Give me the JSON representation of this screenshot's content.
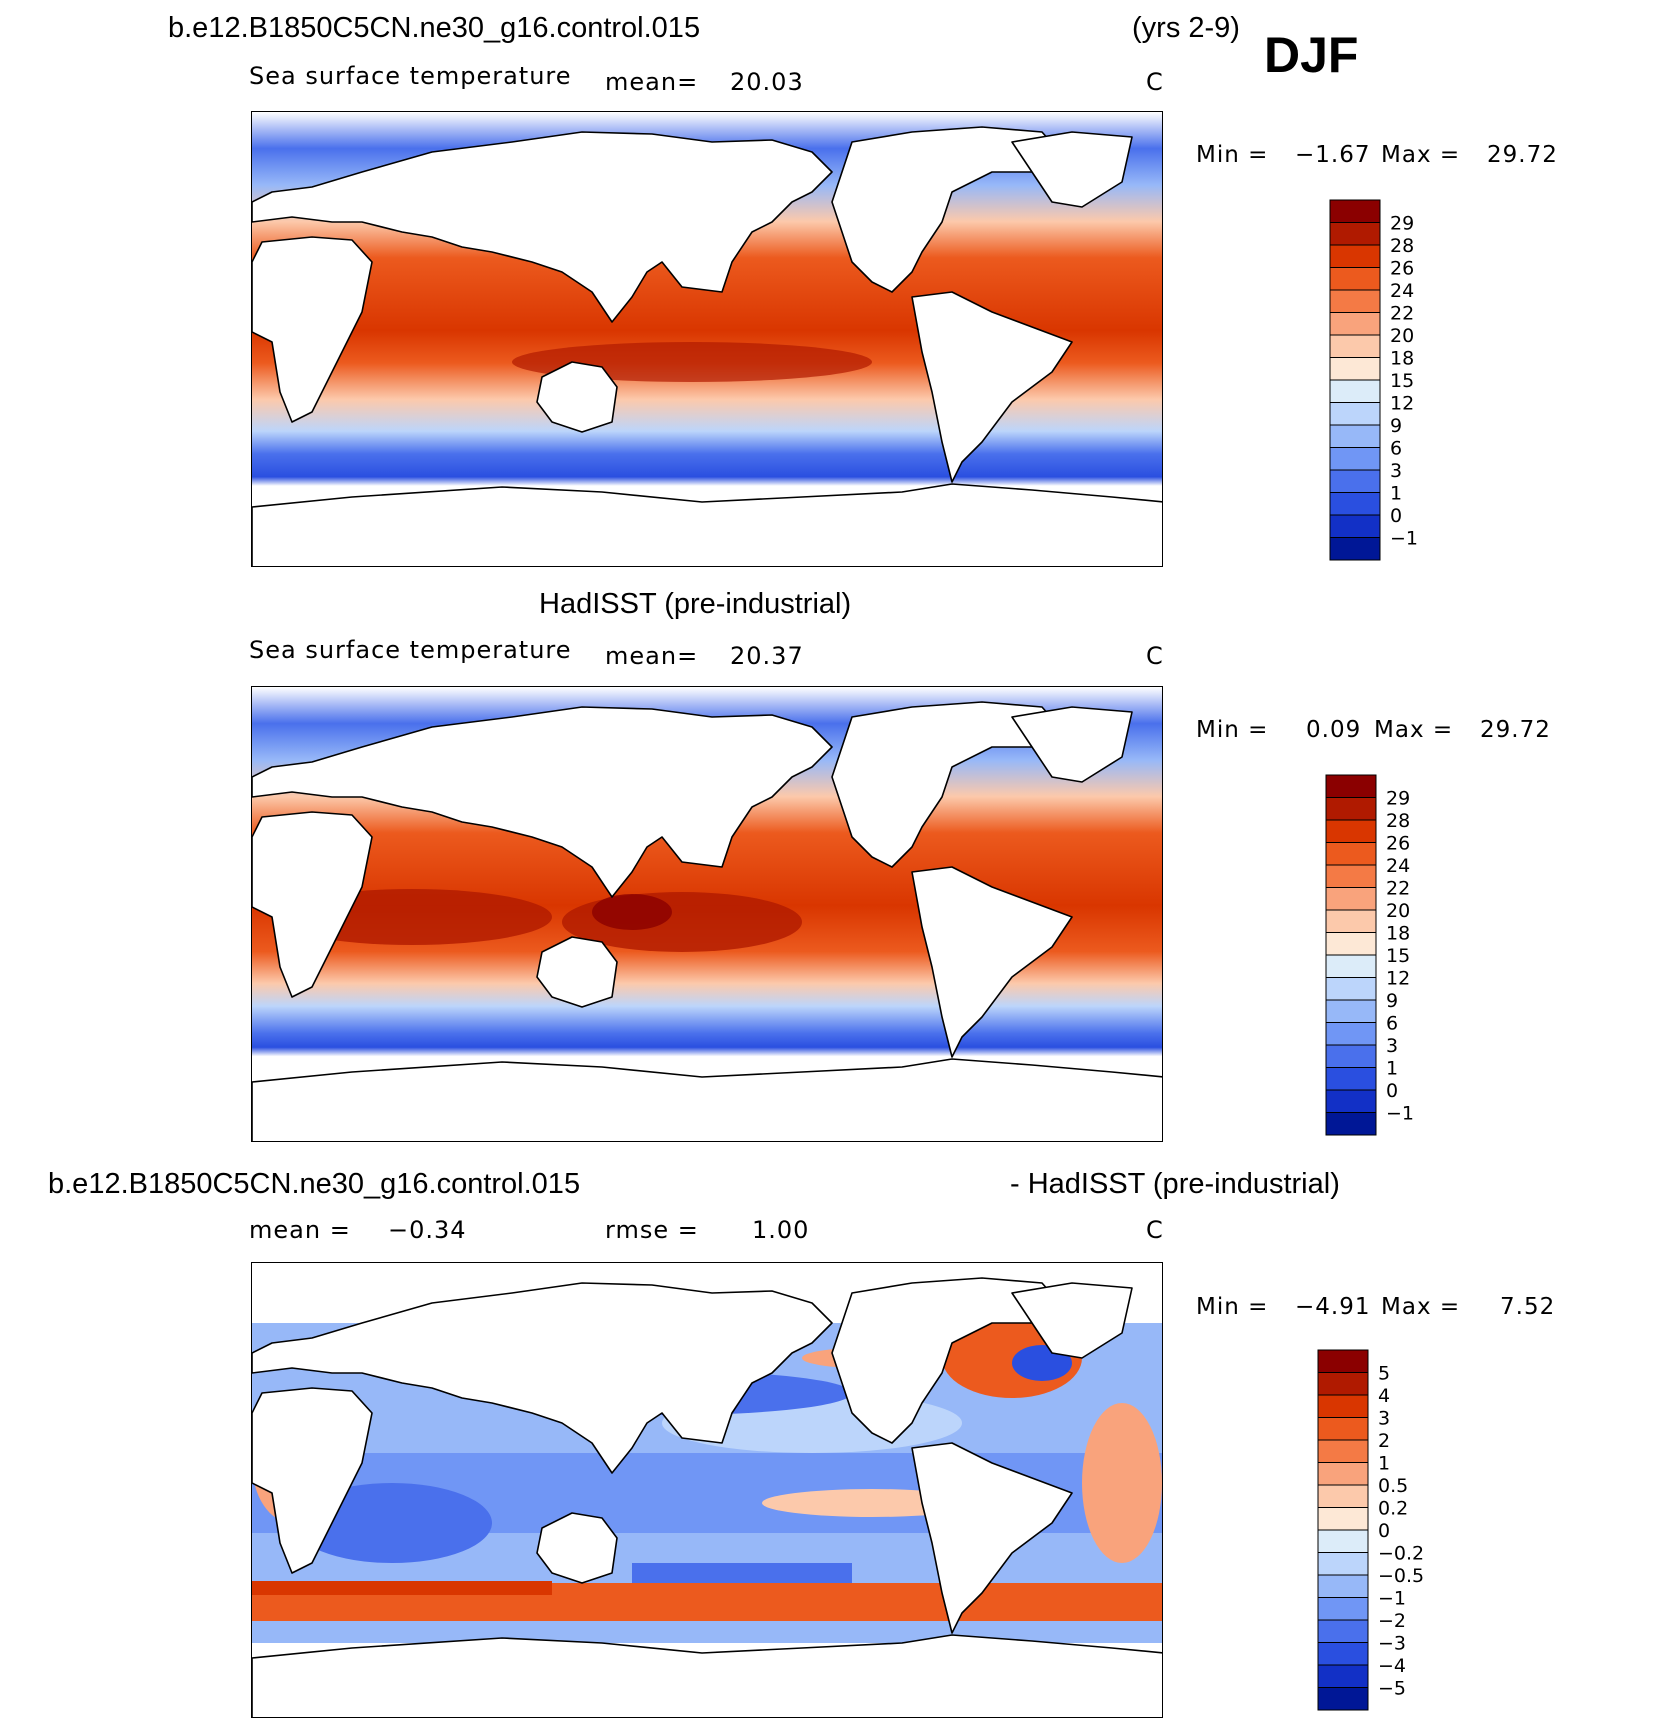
{
  "header": {
    "case_name": "b.e12.B1850C5CN.ne30_g16.control.015",
    "years": "(yrs 2-9)",
    "season": "DJF"
  },
  "panels": [
    {
      "id": "model",
      "variable": "Sea surface temperature",
      "stat1_label": "mean=",
      "stat1_value": "20.03",
      "units": "C",
      "min_label": "Min =",
      "min_value": "−1.67",
      "max_label": "Max =",
      "max_value": "29.72",
      "colorbar_labels": [
        "29",
        "28",
        "26",
        "24",
        "22",
        "20",
        "18",
        "15",
        "12",
        "9",
        "6",
        "3",
        "1",
        "0",
        "−1"
      ]
    },
    {
      "id": "obs",
      "title": "HadISST (pre-industrial)",
      "variable": "Sea surface temperature",
      "stat1_label": "mean=",
      "stat1_value": "20.37",
      "units": "C",
      "min_label": "Min =",
      "min_value": "0.09",
      "max_label": "Max =",
      "max_value": "29.72",
      "colorbar_labels": [
        "29",
        "28",
        "26",
        "24",
        "22",
        "20",
        "18",
        "15",
        "12",
        "9",
        "6",
        "3",
        "1",
        "0",
        "−1"
      ]
    },
    {
      "id": "diff",
      "title_left": "b.e12.B1850C5CN.ne30_g16.control.015",
      "title_right": "- HadISST (pre-industrial)",
      "stat1_label": "mean =",
      "stat1_value": "−0.34",
      "stat2_label": "rmse =",
      "stat2_value": "1.00",
      "units": "C",
      "min_label": "Min =",
      "min_value": "−4.91",
      "max_label": "Max =",
      "max_value": "7.52",
      "colorbar_labels": [
        "5",
        "4",
        "3",
        "2",
        "1",
        "0.5",
        "0.2",
        "0",
        "−0.2",
        "−0.5",
        "−1",
        "−2",
        "−3",
        "−4",
        "−5"
      ]
    }
  ],
  "colors": {
    "colorbar_palette": [
      "#8b0000",
      "#b01a00",
      "#d93600",
      "#ec5a1e",
      "#f47a45",
      "#f9a37c",
      "#fcc9ab",
      "#fde8d6",
      "#dcecf9",
      "#bcd5fb",
      "#97b8f8",
      "#7096f5",
      "#4a70ec",
      "#2a4fe0",
      "#1230c6",
      "#001796"
    ]
  }
}
